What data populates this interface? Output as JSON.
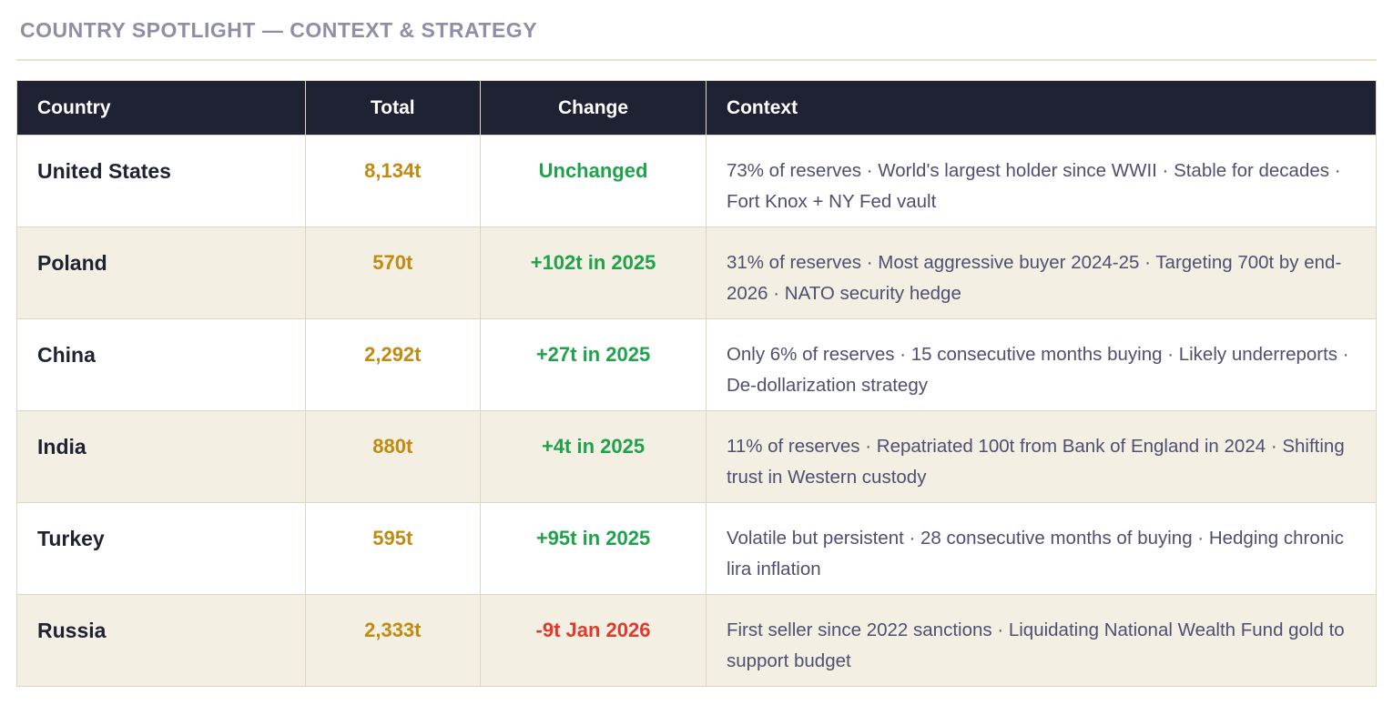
{
  "page": {
    "title": "COUNTRY SPOTLIGHT — CONTEXT & STRATEGY"
  },
  "colors": {
    "header_bg": "#1f2233",
    "header_text": "#ffffff",
    "row_bg": "#ffffff",
    "row_alt_bg": "#f4efe3",
    "border": "#ded5c2",
    "title_text": "#8e8ea6",
    "gold_value": "#c08b10",
    "positive_change": "#1ea24b",
    "negative_change": "#e0392e",
    "country_text": "#1f2233",
    "context_text": "#4f4f72"
  },
  "table": {
    "columns": [
      "Country",
      "Total",
      "Change",
      "Context"
    ],
    "rows": [
      {
        "country": "United States",
        "total": "8,134t",
        "change": "Unchanged",
        "change_direction": "up",
        "context": "73% of reserves · World's largest holder since WWII · Stable for decades · Fort Knox + NY Fed vault"
      },
      {
        "country": "Poland",
        "total": "570t",
        "change": "+102t in 2025",
        "change_direction": "up",
        "context": "31% of reserves · Most aggressive buyer 2024-25 · Targeting 700t by end-2026 · NATO security hedge"
      },
      {
        "country": "China",
        "total": "2,292t",
        "change": "+27t in 2025",
        "change_direction": "up",
        "context": "Only 6% of reserves · 15 consecutive months buying · Likely underreports · De-dollarization strategy"
      },
      {
        "country": "India",
        "total": "880t",
        "change": "+4t in 2025",
        "change_direction": "up",
        "context": "11% of reserves · Repatriated 100t from Bank of England in 2024 · Shifting trust in Western custody"
      },
      {
        "country": "Turkey",
        "total": "595t",
        "change": "+95t in 2025",
        "change_direction": "up",
        "context": "Volatile but persistent · 28 consecutive months of buying · Hedging chronic lira inflation"
      },
      {
        "country": "Russia",
        "total": "2,333t",
        "change": "-9t Jan 2026",
        "change_direction": "down",
        "context": "First seller since 2022 sanctions · Liquidating National Wealth Fund gold to support budget"
      }
    ]
  }
}
